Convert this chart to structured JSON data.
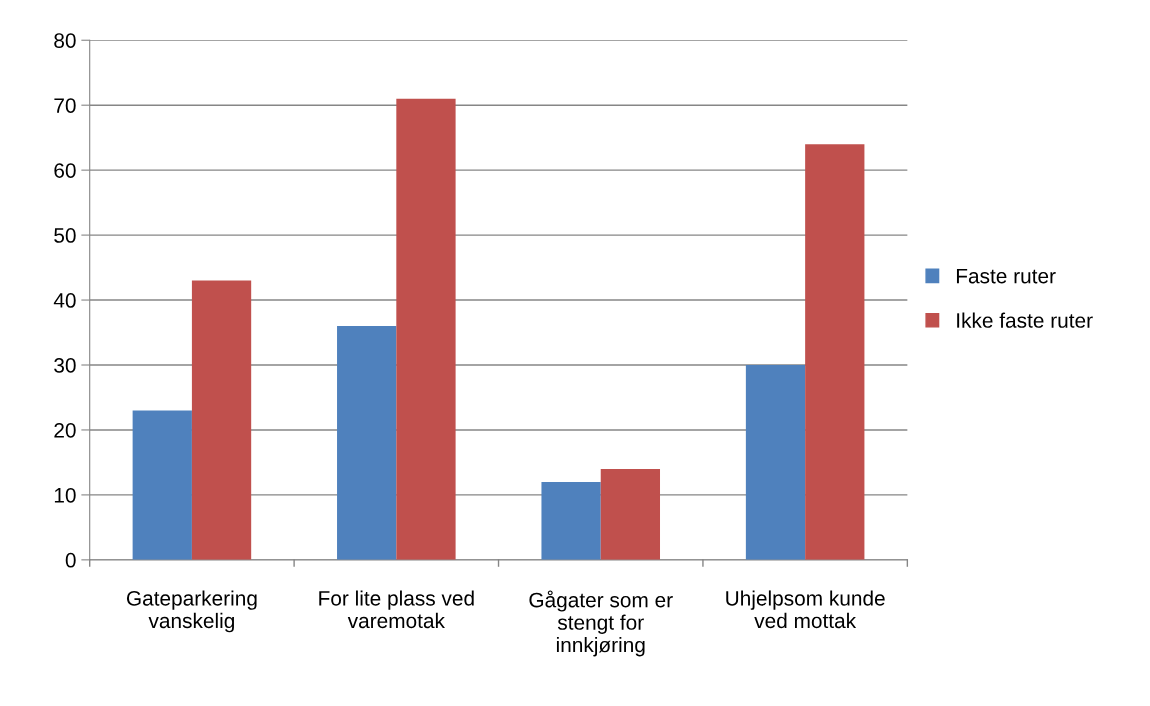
{
  "chart_data": {
    "type": "bar",
    "categories": [
      "Gateparkering\nvanskelig",
      "For lite plass ved\nvaremotak",
      "Gågater som er\nstengt for\ninnkjøring",
      "Uhjelpsom kunde\nved mottak"
    ],
    "series": [
      {
        "name": "Faste ruter",
        "color": "#4f81bd",
        "values": [
          23,
          36,
          12,
          30
        ]
      },
      {
        "name": "Ikke faste ruter",
        "color": "#c0504d",
        "values": [
          43,
          71,
          14,
          64
        ]
      }
    ],
    "ylim": [
      0,
      80
    ],
    "yticks": [
      0,
      10,
      20,
      30,
      40,
      50,
      60,
      70,
      80
    ],
    "grid": "y",
    "legend": "right"
  }
}
